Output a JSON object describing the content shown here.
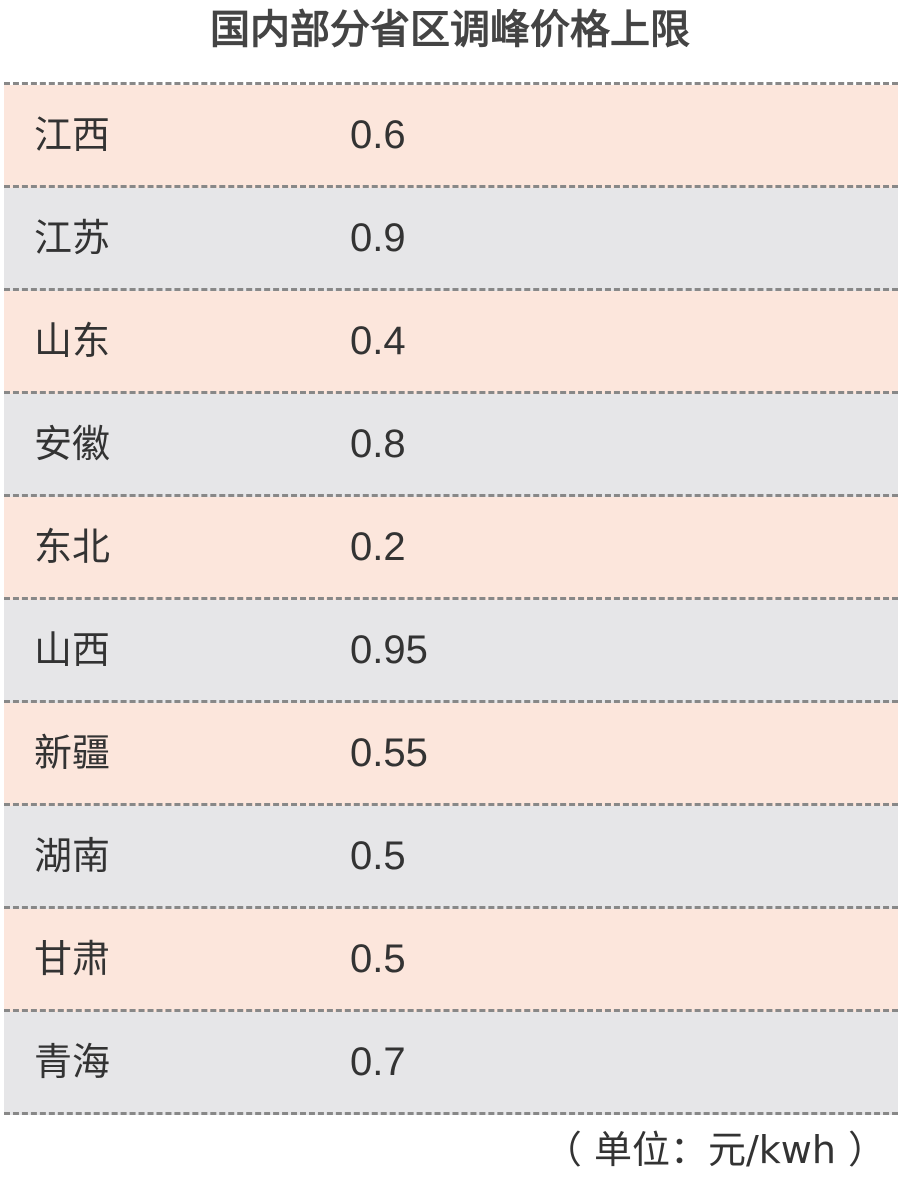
{
  "title": "国内部分省区调峰价格上限",
  "rows": [
    {
      "region": "江西",
      "value": "0.6"
    },
    {
      "region": "江苏",
      "value": "0.9"
    },
    {
      "region": "山东",
      "value": "0.4"
    },
    {
      "region": "安徽",
      "value": "0.8"
    },
    {
      "region": "东北",
      "value": "0.2"
    },
    {
      "region": "山西",
      "value": "0.95"
    },
    {
      "region": "新疆",
      "value": "0.55"
    },
    {
      "region": "湖南",
      "value": "0.5"
    },
    {
      "region": "甘肃",
      "value": "0.5"
    },
    {
      "region": "青海",
      "value": "0.7"
    }
  ],
  "unit_note": "（ 单位：元/kwh ）",
  "colors": {
    "row_odd": "#fce6dc",
    "row_even": "#e6e6e8"
  }
}
